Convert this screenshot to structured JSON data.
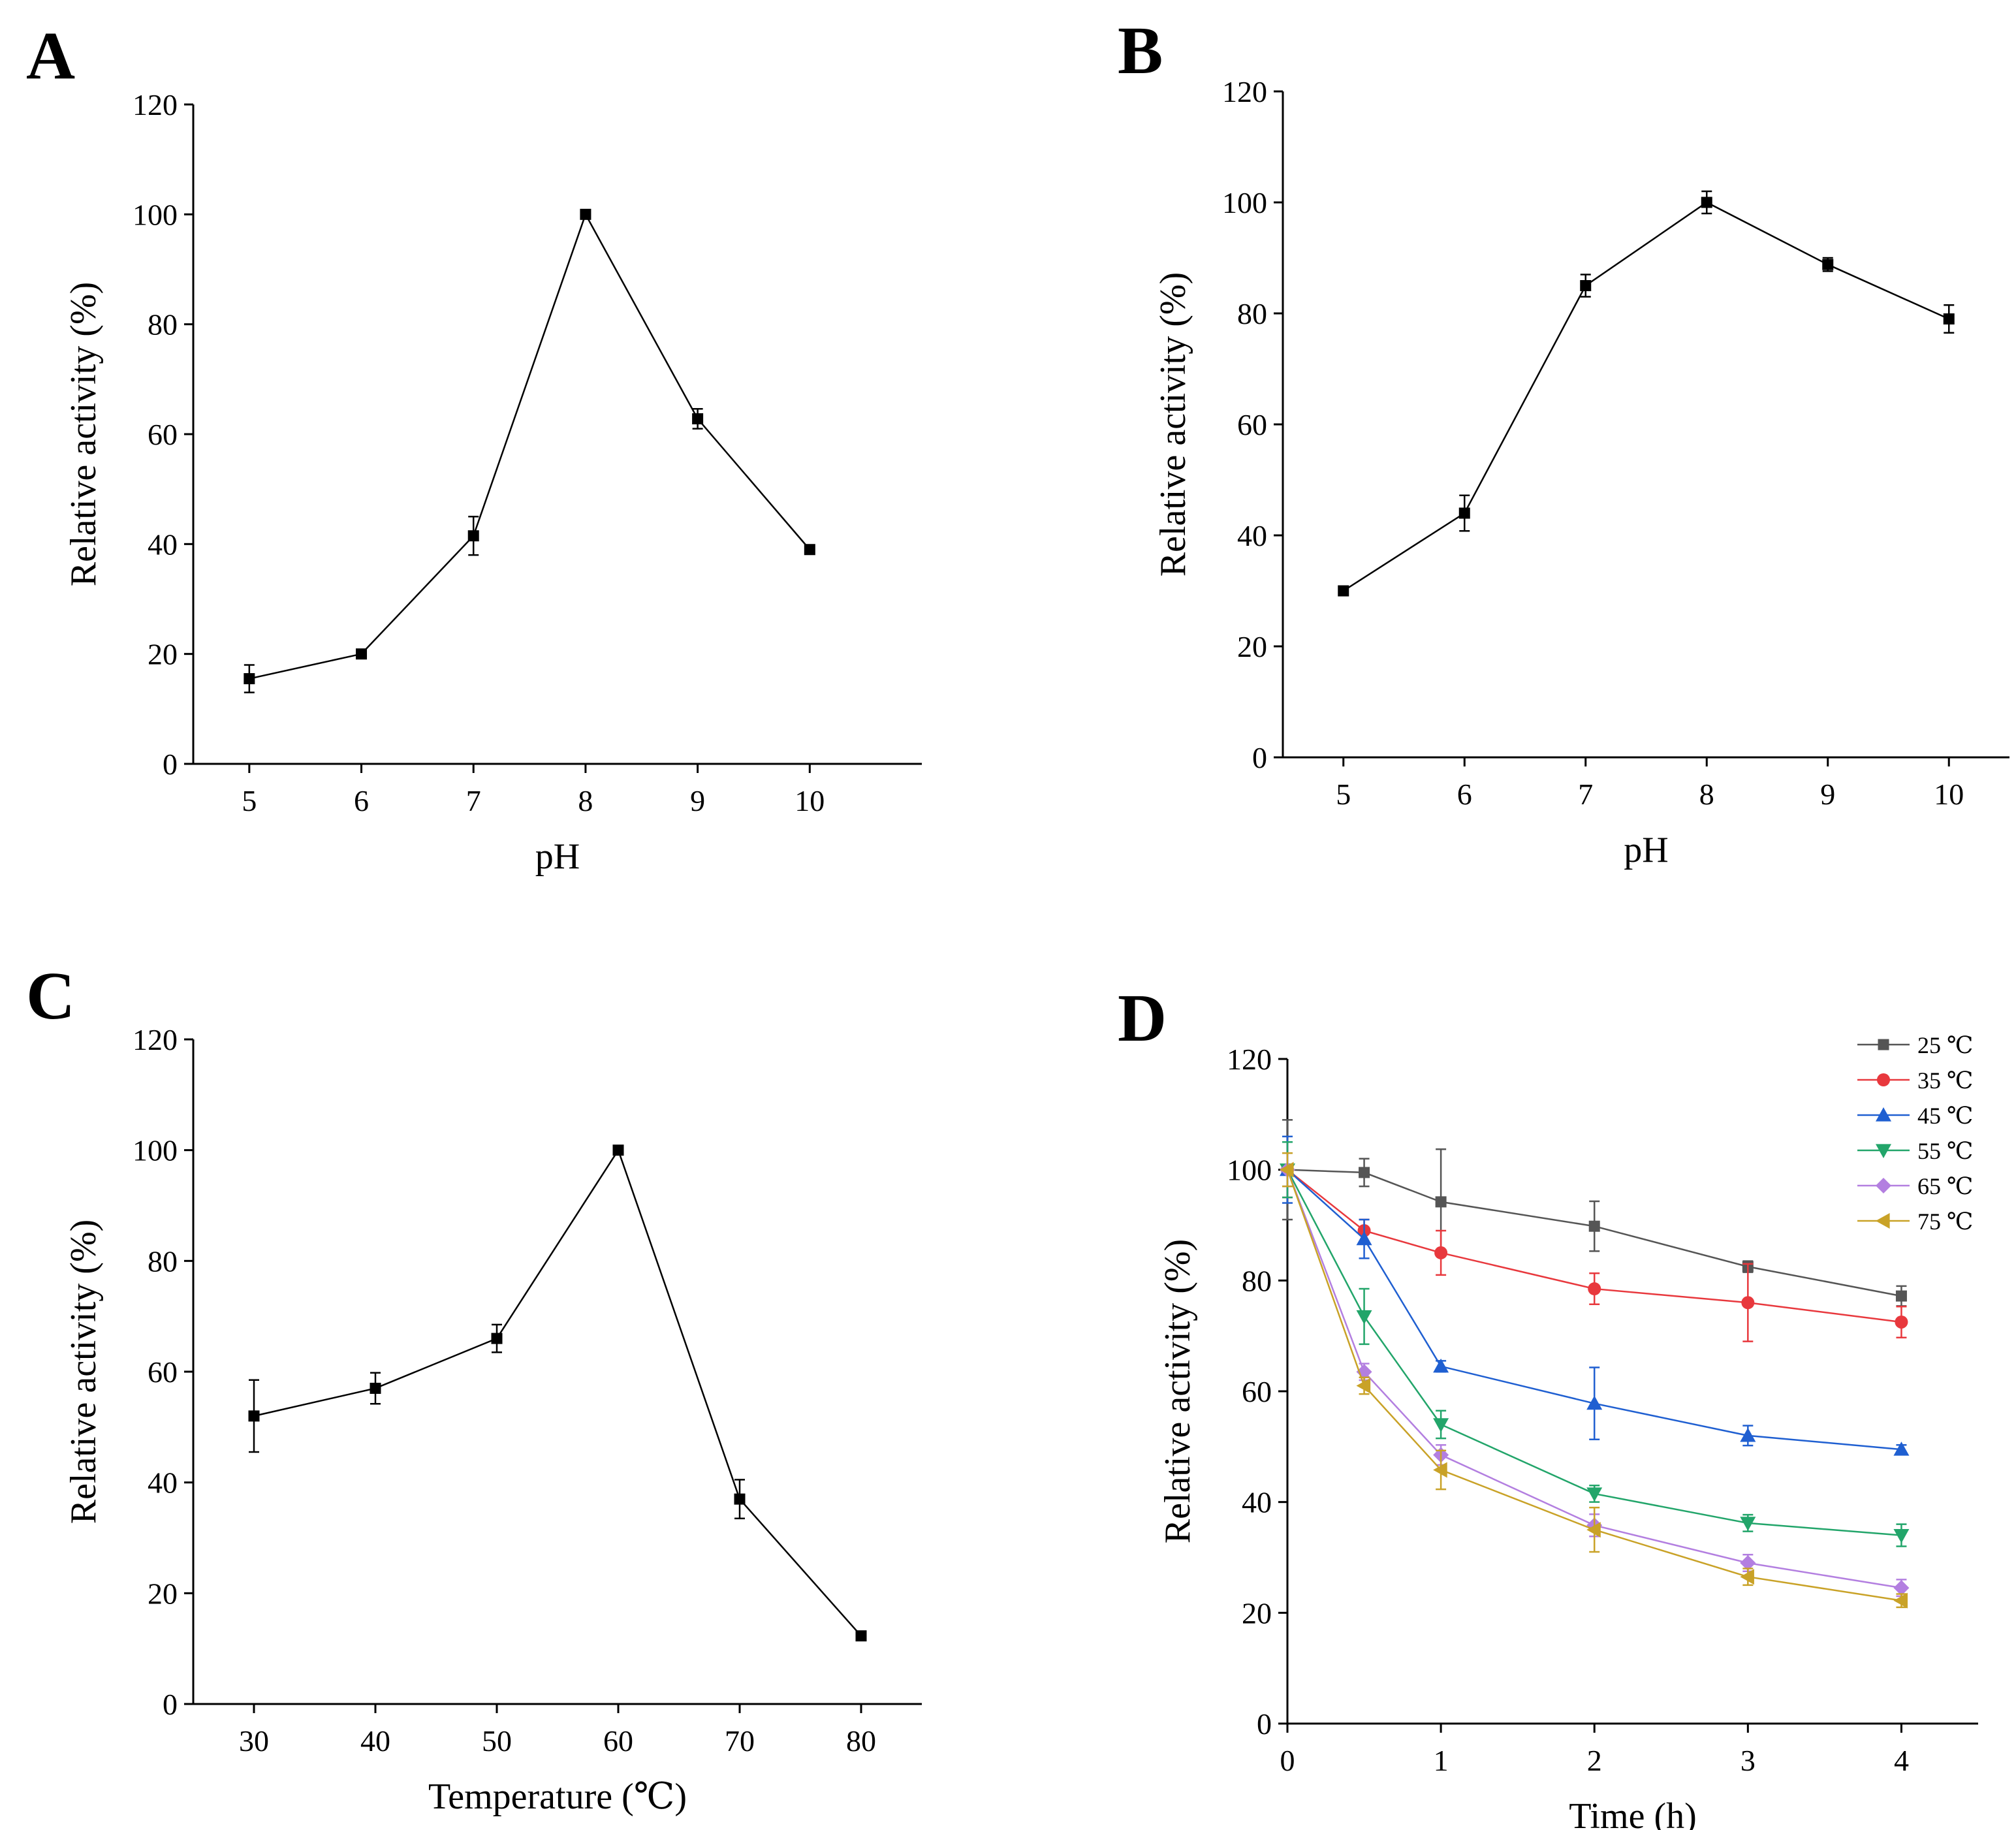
{
  "chart_data": [
    {
      "panel": "A",
      "type": "line",
      "xlabel": "pH",
      "ylabel": "Relative activity (%)",
      "x": [
        5,
        6,
        7,
        8,
        9,
        10
      ],
      "xlim": [
        4.5,
        11
      ],
      "ylim": [
        0,
        120
      ],
      "xticks": [
        5,
        6,
        7,
        8,
        9,
        10
      ],
      "yticks": [
        0,
        20,
        40,
        60,
        80,
        100,
        120
      ],
      "series": [
        {
          "name": "activity",
          "color": "#000000",
          "marker": "square",
          "values": [
            15.5,
            20,
            41.5,
            100,
            62.8,
            39
          ],
          "errors": [
            2.5,
            0.8,
            3.5,
            0.5,
            1.8,
            0.5
          ]
        }
      ]
    },
    {
      "panel": "B",
      "type": "line",
      "xlabel": "pH",
      "ylabel": "Relative activity (%)",
      "x": [
        5,
        6,
        7,
        8,
        9,
        10
      ],
      "xlim": [
        4.5,
        10.5
      ],
      "ylim": [
        0,
        120
      ],
      "xticks": [
        5,
        6,
        7,
        8,
        9,
        10
      ],
      "yticks": [
        0,
        20,
        40,
        60,
        80,
        100,
        120
      ],
      "series": [
        {
          "name": "activity",
          "color": "#000000",
          "marker": "square",
          "values": [
            30,
            44,
            85,
            100,
            88.8,
            79
          ],
          "errors": [
            0.8,
            3.2,
            2.0,
            2.0,
            1.2,
            2.5
          ]
        }
      ]
    },
    {
      "panel": "C",
      "type": "line",
      "xlabel": "Temperature (℃)",
      "ylabel": "Relative activity (%)",
      "x": [
        30,
        40,
        50,
        60,
        70,
        80
      ],
      "xlim": [
        25,
        85
      ],
      "ylim": [
        0,
        120
      ],
      "xticks": [
        30,
        40,
        50,
        60,
        70,
        80
      ],
      "yticks": [
        0,
        20,
        40,
        60,
        80,
        100,
        120
      ],
      "series": [
        {
          "name": "activity",
          "color": "#000000",
          "marker": "square",
          "values": [
            52,
            57,
            66,
            100,
            37,
            12.3
          ],
          "errors": [
            6.5,
            2.8,
            2.5,
            0.5,
            3.5,
            0.5
          ]
        }
      ]
    },
    {
      "panel": "D",
      "type": "line",
      "xlabel": "Time (h)",
      "ylabel": "Relative activity (%)",
      "x": [
        0,
        0.5,
        1,
        2,
        3,
        4
      ],
      "xlim": [
        0,
        4.5
      ],
      "ylim": [
        0,
        120
      ],
      "xticks": [
        0,
        1,
        2,
        3,
        4
      ],
      "yticks": [
        0,
        20,
        40,
        60,
        80,
        100,
        120
      ],
      "legend_position": "top-right",
      "series": [
        {
          "name": "25 ℃",
          "color": "#555555",
          "marker": "square",
          "values": [
            100,
            99.5,
            94.2,
            89.8,
            82.5,
            77.2
          ],
          "errors": [
            9,
            2.5,
            9.5,
            4.5,
            1.0,
            1.8
          ]
        },
        {
          "name": "35 ℃",
          "color": "#e8383d",
          "marker": "circle",
          "values": [
            100,
            89,
            85,
            78.5,
            76,
            72.5
          ],
          "errors": [
            5,
            2.0,
            4.0,
            2.8,
            7.0,
            2.8
          ]
        },
        {
          "name": "45 ℃",
          "color": "#1f5fd1",
          "marker": "triangle-up",
          "values": [
            100,
            87.5,
            64.5,
            57.8,
            52,
            49.5
          ],
          "errors": [
            6,
            3.5,
            1.0,
            6.5,
            1.8,
            0.8
          ]
        },
        {
          "name": "55 ℃",
          "color": "#22a56a",
          "marker": "triangle-down",
          "values": [
            100,
            73.5,
            54,
            41.5,
            36.2,
            34
          ],
          "errors": [
            5,
            5.0,
            2.5,
            1.5,
            1.5,
            2.0
          ]
        },
        {
          "name": "65 ℃",
          "color": "#b37fe0",
          "marker": "diamond",
          "values": [
            100,
            63.5,
            48.5,
            35.8,
            29,
            24.5
          ],
          "errors": [
            3,
            1.5,
            1.8,
            2.0,
            1.5,
            1.5
          ]
        },
        {
          "name": "75 ℃",
          "color": "#c9a227",
          "marker": "triangle-left",
          "values": [
            100,
            61,
            45.8,
            35,
            26.5,
            22.2
          ],
          "errors": [
            3,
            1.5,
            3.5,
            4.0,
            1.5,
            1.2
          ]
        }
      ]
    }
  ]
}
